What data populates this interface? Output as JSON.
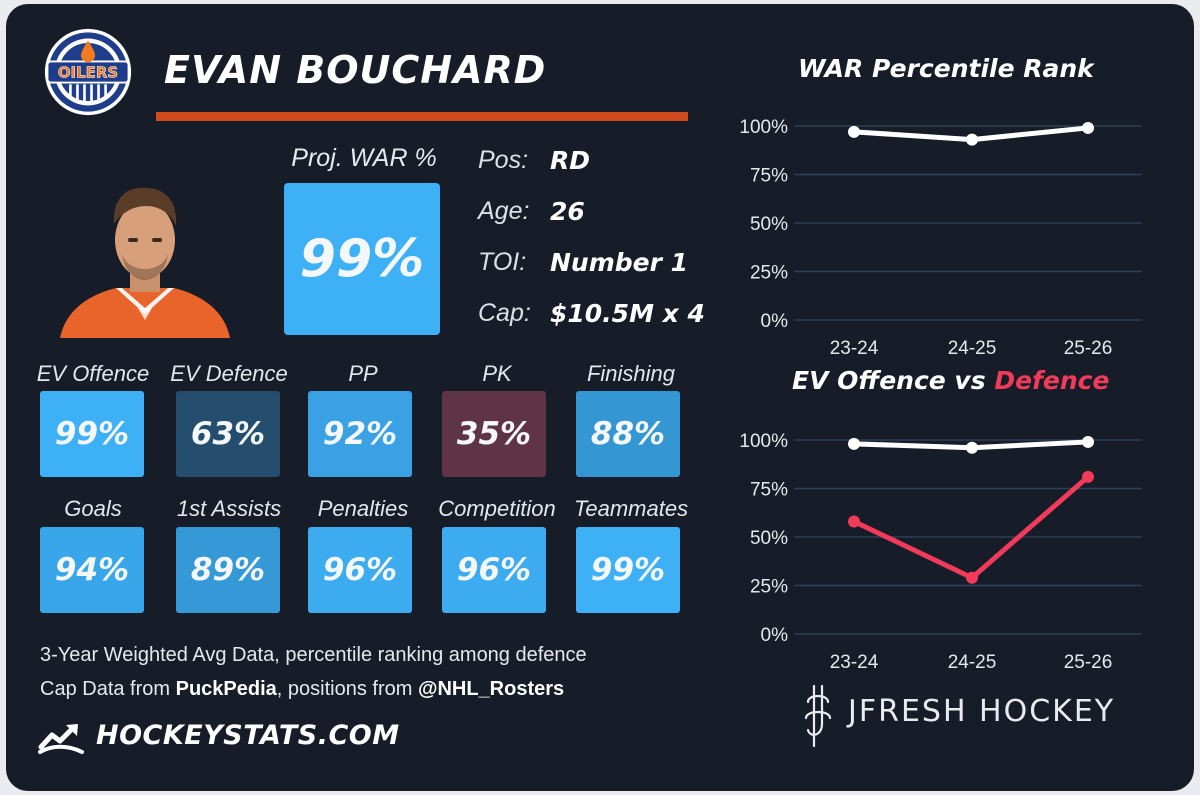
{
  "header": {
    "team_logo": "oilers-logo",
    "team_logo_text": "OILERS",
    "player_name": "EVAN BOUCHARD",
    "accent_color": "#cf4a1c"
  },
  "projection": {
    "label": "Proj. WAR %",
    "value": "99%",
    "color": "#3eb0f5"
  },
  "info": [
    {
      "key": "Pos:",
      "value": "RD"
    },
    {
      "key": "Age:",
      "value": "26"
    },
    {
      "key": "TOI:",
      "value": "Number 1"
    },
    {
      "key": "Cap:",
      "value": "$10.5M x 4"
    }
  ],
  "stats": [
    {
      "label": "EV Offence",
      "value": "99%",
      "color": "#3eb0f5"
    },
    {
      "label": "EV Defence",
      "value": "63%",
      "color": "#254e6e"
    },
    {
      "label": "PP",
      "value": "92%",
      "color": "#3aa1e4"
    },
    {
      "label": "PK",
      "value": "35%",
      "color": "#5e3446"
    },
    {
      "label": "Finishing",
      "value": "88%",
      "color": "#3596d4"
    },
    {
      "label": "Goals",
      "value": "94%",
      "color": "#3aa6ea"
    },
    {
      "label": "1st Assists",
      "value": "89%",
      "color": "#3599d8"
    },
    {
      "label": "Penalties",
      "value": "96%",
      "color": "#3cabf0"
    },
    {
      "label": "Competition",
      "value": "96%",
      "color": "#3cabf0"
    },
    {
      "label": "Teammates",
      "value": "99%",
      "color": "#3eb0f5"
    }
  ],
  "footer": {
    "note_line1": "3-Year Weighted Avg Data, percentile ranking among defence",
    "note_line2_prefix": "Cap Data from ",
    "note_line2_source": "PuckPedia",
    "note_line2_mid": ", positions from ",
    "note_line2_handle": "@NHL_Rosters",
    "site_icon": "hockeystats-logo-icon",
    "site_name": "HOCKEYSTATS.COM",
    "brand_icon": "jfresh-logo-icon",
    "brand_name": "JFRESH HOCKEY"
  },
  "chart_data": [
    {
      "type": "line",
      "title": "WAR Percentile Rank",
      "categories": [
        "23-24",
        "24-25",
        "25-26"
      ],
      "y_ticks": [
        "100%",
        "75%",
        "50%",
        "25%",
        "0%"
      ],
      "ylim": [
        0,
        100
      ],
      "grid": true,
      "series": [
        {
          "values": [
            97,
            93,
            99
          ],
          "color": "#ffffff"
        }
      ]
    },
    {
      "type": "line",
      "title_part1": "EV Offence vs ",
      "title_part2": "Defence",
      "categories": [
        "23-24",
        "24-25",
        "25-26"
      ],
      "y_ticks": [
        "100%",
        "75%",
        "50%",
        "25%",
        "0%"
      ],
      "ylim": [
        0,
        100
      ],
      "grid": true,
      "series": [
        {
          "values": [
            98,
            96,
            99
          ],
          "color": "#ffffff"
        },
        {
          "values": [
            58,
            29,
            81
          ],
          "color": "#f23a5a"
        }
      ]
    }
  ]
}
